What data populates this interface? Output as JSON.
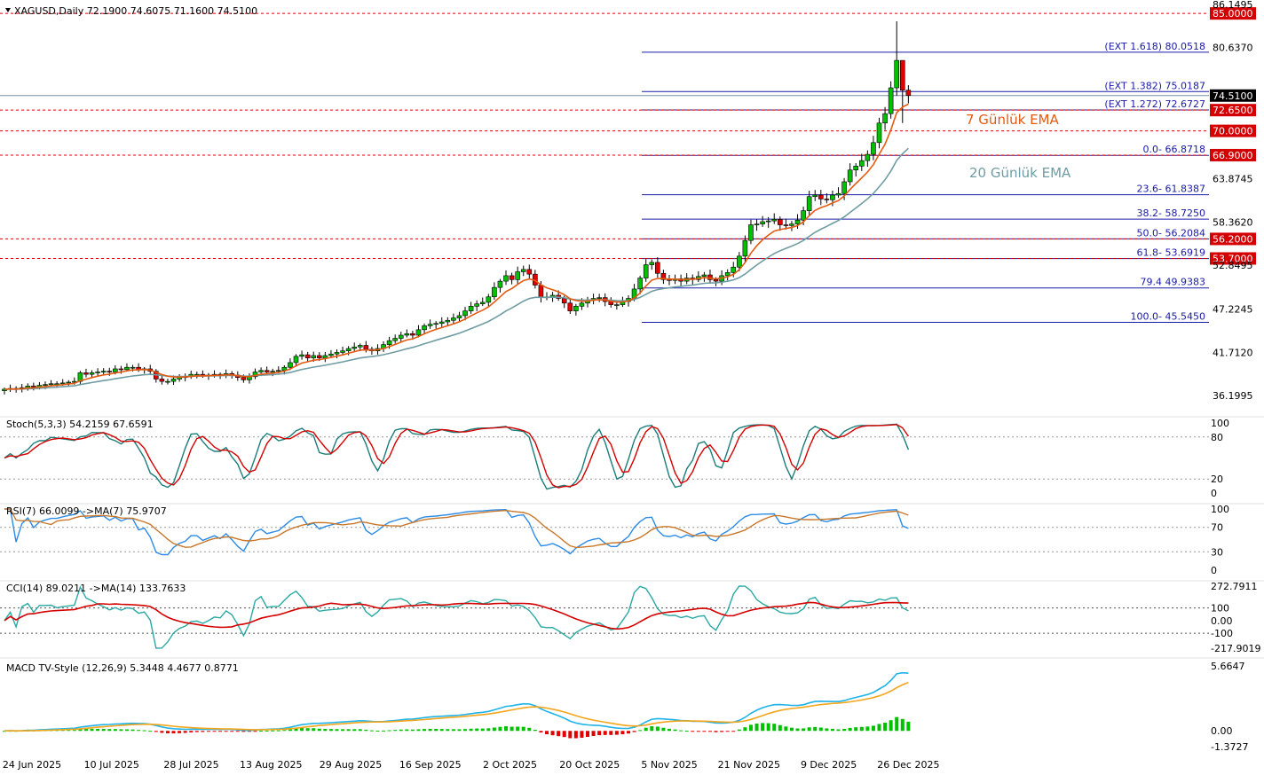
{
  "chart_data": {
    "type": "candlestick",
    "symbol_header": "XAGUSD,Daily  72.1900 74.6075 71.1600 74.5100",
    "price_axis_ticks": [
      "86.1495",
      "80.6370",
      "63.8745",
      "58.3620",
      "52.8495",
      "47.2245",
      "41.7120",
      "36.1995"
    ],
    "ylim": [
      36.1995,
      86.1495
    ],
    "date_labels": [
      "24 Jun 2025",
      "10 Jul 2025",
      "28 Jul 2025",
      "13 Aug 2025",
      "29 Aug 2025",
      "16 Sep 2025",
      "2 Oct 2025",
      "20 Oct 2025",
      "5 Nov 2025",
      "21 Nov 2025",
      "9 Dec 2025",
      "26 Dec 2025"
    ],
    "closes": [
      37.0,
      37.1,
      37.0,
      37.2,
      37.4,
      37.3,
      37.5,
      37.6,
      37.7,
      37.7,
      37.8,
      37.9,
      38.0,
      39.1,
      38.9,
      39.1,
      39.2,
      39.3,
      39.2,
      39.6,
      39.5,
      39.8,
      39.8,
      39.5,
      39.6,
      39.3,
      38.3,
      38.0,
      38.0,
      38.3,
      38.5,
      38.6,
      38.9,
      38.9,
      38.7,
      38.8,
      38.9,
      38.8,
      39.0,
      38.8,
      38.5,
      38.2,
      38.6,
      39.2,
      39.4,
      39.2,
      39.3,
      39.4,
      39.8,
      40.4,
      41.2,
      41.4,
      41.0,
      41.3,
      41.0,
      41.3,
      41.5,
      41.7,
      41.9,
      42.2,
      42.4,
      42.6,
      42.1,
      41.9,
      42.2,
      42.7,
      43.2,
      43.5,
      43.9,
      44.1,
      43.9,
      44.6,
      45.1,
      45.3,
      45.4,
      45.6,
      45.8,
      46.1,
      46.4,
      47.0,
      47.6,
      47.9,
      48.1,
      48.8,
      50.0,
      50.8,
      51.5,
      51.0,
      52.0,
      52.3,
      51.7,
      50.3,
      48.7,
      48.8,
      49.0,
      48.6,
      48.0,
      47.0,
      47.6,
      48.0,
      48.4,
      48.6,
      48.7,
      48.2,
      47.8,
      47.8,
      48.2,
      48.6,
      49.8,
      51.2,
      52.9,
      53.2,
      51.8,
      51.0,
      50.9,
      51.1,
      50.8,
      51.2,
      51.0,
      51.4,
      51.6,
      51.0,
      50.8,
      51.5,
      51.9,
      52.6,
      54.0,
      56.0,
      58.0,
      58.1,
      58.4,
      58.5,
      58.7,
      58.0,
      57.9,
      58.1,
      58.6,
      59.8,
      61.6,
      61.8,
      61.3,
      61.2,
      61.8,
      62.0,
      63.5,
      65.0,
      65.5,
      66.2,
      67.0,
      68.5,
      71.0,
      72.2,
      75.5,
      79.0,
      75.2,
      74.51
    ],
    "series": [
      {
        "name": "7 Günlük EMA"
      },
      {
        "name": "20 Günlük EMA"
      }
    ],
    "horizontal_levels": [
      "85.0000",
      "72.6500",
      "70.0000",
      "66.9000",
      "56.2000",
      "53.7000"
    ],
    "current_price": "74.5100",
    "fibonacci": [
      {
        "label": "(EXT 1.618)  80.0518",
        "price": 80.0518
      },
      {
        "label": "(EXT 1.382)  75.0187",
        "price": 75.0187
      },
      {
        "label": "(EXT 1.272)  72.6727",
        "price": 72.6727
      },
      {
        "label": "0.0- 66.8718",
        "price": 66.8718
      },
      {
        "label": "23.6- 61.8387",
        "price": 61.8387
      },
      {
        "label": "38.2- 58.7250",
        "price": 58.725
      },
      {
        "label": "50.0- 56.2084",
        "price": 56.2084
      },
      {
        "label": "61.8- 53.6919",
        "price": 53.6919
      },
      {
        "label": "79.4 49.9383",
        "price": 49.9383
      },
      {
        "label": "100.0- 45.5450",
        "price": 45.545
      }
    ],
    "indicators": [
      {
        "id": "stoch",
        "label": "Stoch(5,3,3) 54.2159 67.6591",
        "ticks": [
          "100",
          "80",
          "20",
          "0"
        ],
        "range": [
          0,
          100
        ]
      },
      {
        "id": "rsi",
        "label": "RSI(7) 66.0099  ->MA(7) 75.9707",
        "ticks": [
          "100",
          "70",
          "30",
          "0"
        ],
        "range": [
          0,
          100
        ]
      },
      {
        "id": "cci",
        "label": "CCI(14) 89.0211  ->MA(14) 133.7633",
        "ticks": [
          "272.7911",
          "100",
          "0.00",
          "-100",
          "-217.9019"
        ],
        "range": [
          -217.9019,
          272.7911
        ]
      },
      {
        "id": "macd",
        "label": "MACD TV-Style (12,26,9) 5.3448 4.4677 0.8771",
        "ticks": [
          "5.6647",
          "0.00",
          "-1.3727"
        ],
        "range": [
          -1.3727,
          5.6647
        ]
      }
    ]
  },
  "colors": {
    "bull": "#00c000",
    "bear": "#e00000",
    "level": "#d40000",
    "fib": "#1a1aa8",
    "ema7": "#e45a12",
    "ema20": "#6f9ca3",
    "stoch_main": "#1b7d7a",
    "stoch_signal": "#d40000",
    "rsi": "#2b8be6",
    "rsi_ma": "#c8772a",
    "cci": "#2aa9a3",
    "cci_ma": "#d40000",
    "macd": "#1fb3e8",
    "signal": "#f3a51b"
  }
}
